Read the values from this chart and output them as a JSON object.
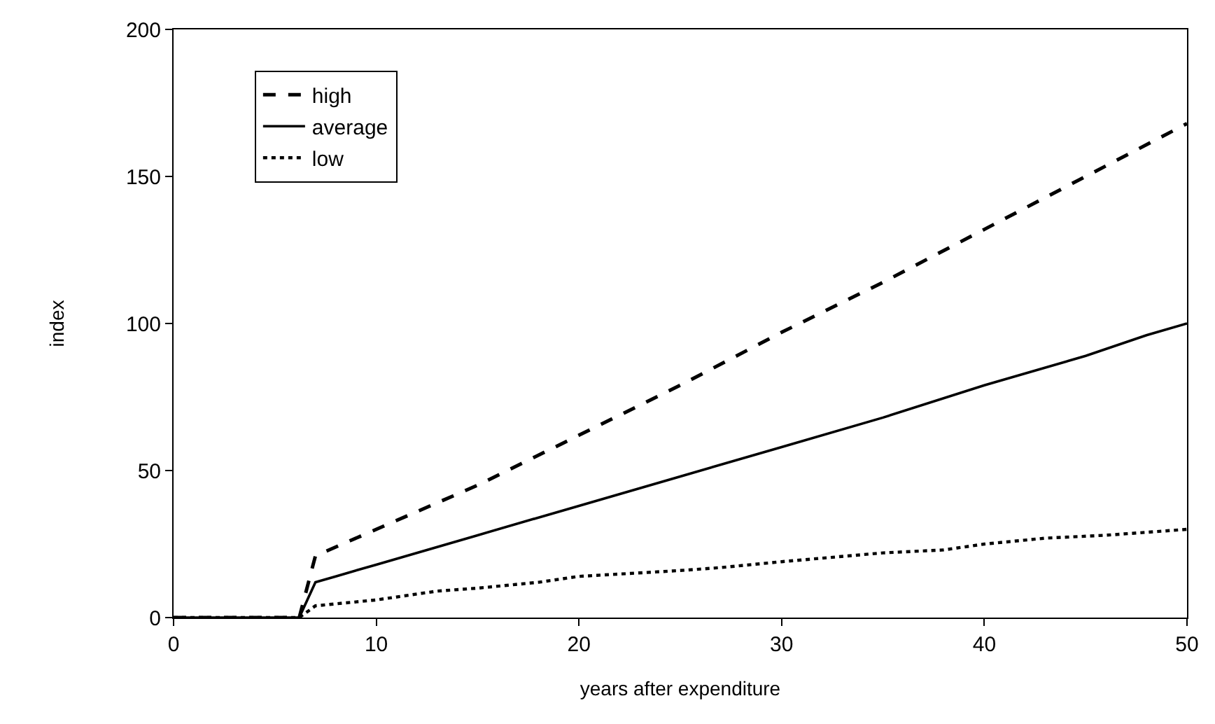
{
  "chart_data": {
    "type": "line",
    "xlabel": "years after expenditure",
    "ylabel": "index",
    "xlim": [
      0,
      50
    ],
    "ylim": [
      0,
      200
    ],
    "xticks": [
      0,
      10,
      20,
      30,
      40,
      50
    ],
    "yticks": [
      0,
      50,
      100,
      150,
      200
    ],
    "legend": "top left",
    "marker": "none",
    "series": [
      {
        "name": "high",
        "color": "#000000",
        "line_style": "dashed",
        "x": [
          0,
          3,
          6,
          6.2,
          7,
          10,
          15,
          20,
          25,
          30,
          35,
          40,
          45,
          50
        ],
        "values": [
          0,
          0,
          0,
          0,
          21,
          30,
          45,
          62,
          79,
          97,
          114,
          132,
          150,
          168
        ]
      },
      {
        "name": "average",
        "color": "#000000",
        "line_style": "solid",
        "x": [
          0,
          3,
          6,
          6.2,
          7,
          8,
          10,
          15,
          20,
          25,
          30,
          35,
          40,
          45,
          48,
          50
        ],
        "values": [
          0,
          0,
          0,
          0,
          12,
          14,
          18,
          28,
          38,
          48,
          58,
          68,
          79,
          89,
          96,
          100
        ]
      },
      {
        "name": "low",
        "color": "#000000",
        "line_style": "dotted",
        "x": [
          0,
          3,
          6,
          6.2,
          7,
          10,
          13,
          15,
          18,
          20,
          25,
          27,
          30,
          35,
          38,
          40,
          43,
          46,
          50
        ],
        "values": [
          0,
          0,
          0,
          0,
          4,
          6,
          9,
          10,
          12,
          14,
          16,
          17,
          19,
          22,
          23,
          25,
          27,
          28,
          30
        ]
      }
    ]
  }
}
